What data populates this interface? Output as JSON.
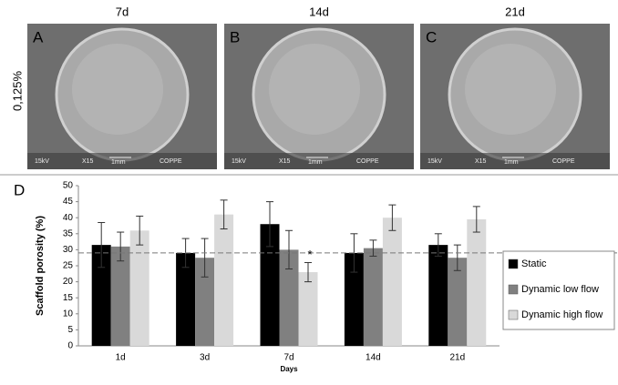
{
  "figure": {
    "panels": [
      {
        "column": "7d",
        "letter": "A",
        "sem_voltage": "15kV",
        "sem_mag": "X15",
        "sem_scale": "1mm",
        "sem_lab": "COPPE"
      },
      {
        "column": "14d",
        "letter": "B",
        "sem_voltage": "15kV",
        "sem_mag": "X15",
        "sem_scale": "1mm",
        "sem_lab": "COPPE"
      },
      {
        "column": "21d",
        "letter": "C",
        "sem_voltage": "15kV",
        "sem_mag": "X15",
        "sem_scale": "1mm",
        "sem_lab": "COPPE"
      }
    ],
    "row_label": "0,125%",
    "chart_letter": "D"
  },
  "chart_data": {
    "type": "bar",
    "x_label": "Days",
    "y_label": "Scaffold porosity (%)",
    "categories": [
      "1d",
      "3d",
      "7d",
      "14d",
      "21d"
    ],
    "series": [
      {
        "name": "Static",
        "color": "#000000",
        "values": [
          31.5,
          29,
          38,
          29,
          31.5
        ],
        "errors": [
          7,
          4.5,
          7,
          6,
          3.5
        ]
      },
      {
        "name": "Dynamic low flow",
        "color": "#808080",
        "values": [
          31,
          27.5,
          30,
          30.5,
          27.5
        ],
        "errors": [
          4.5,
          6,
          6,
          2.5,
          4
        ]
      },
      {
        "name": "Dynamic high flow",
        "color": "#d9d9d9",
        "values": [
          36,
          41,
          23,
          40,
          39.5
        ],
        "errors": [
          4.5,
          4.5,
          3,
          4,
          4
        ]
      }
    ],
    "reference_line": 29,
    "annotation": "*",
    "ylim": [
      0,
      50
    ],
    "yticks": [
      0,
      5,
      10,
      15,
      20,
      25,
      30,
      35,
      40,
      45,
      50
    ],
    "legend": "right"
  }
}
